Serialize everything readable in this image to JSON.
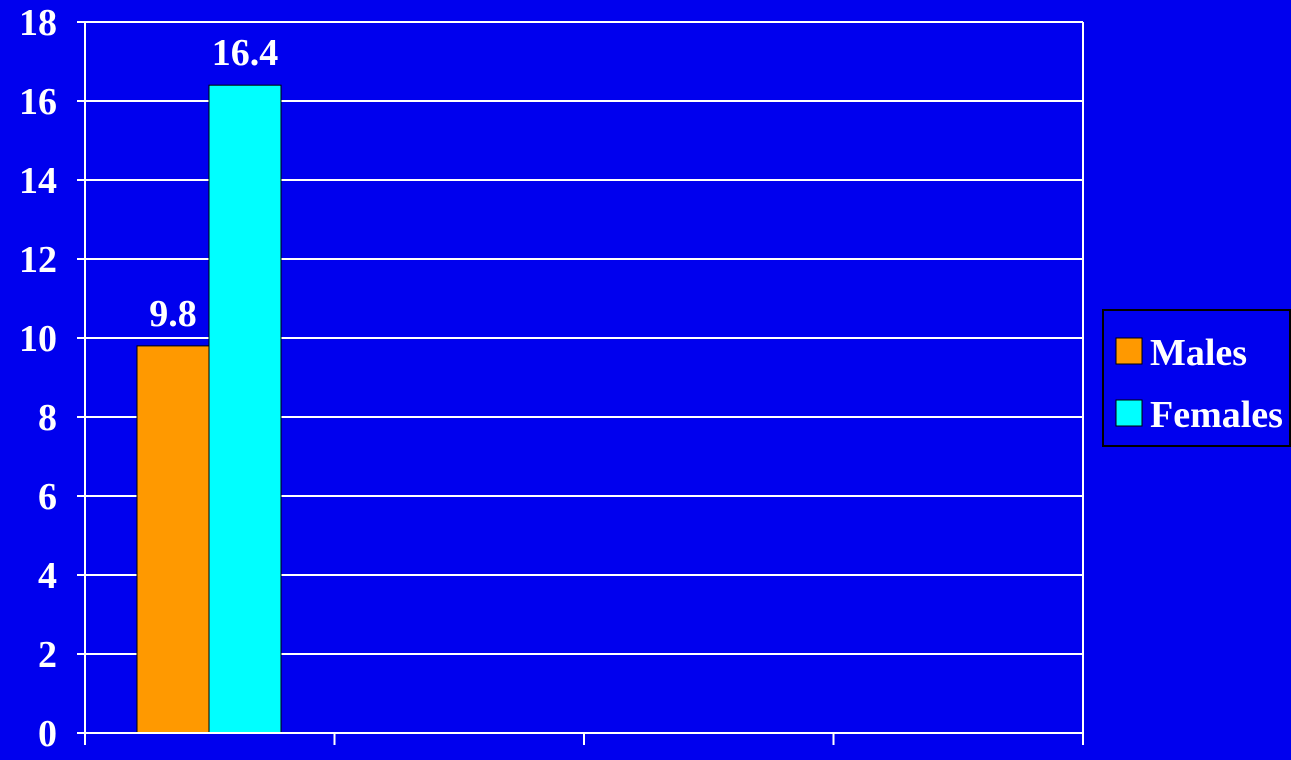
{
  "colors": {
    "background": "#0000EE",
    "grid": "#FFFFFF",
    "axis": "#FFFFFF",
    "text": "#FFFFFF"
  },
  "chart_data": {
    "type": "bar",
    "categories": [
      "",
      "",
      "",
      ""
    ],
    "series": [
      {
        "name": "Males",
        "values": [
          9.8,
          null,
          null,
          null
        ],
        "color": "#FF9900"
      },
      {
        "name": "Females",
        "values": [
          16.4,
          null,
          null,
          null
        ],
        "color": "#00FFFF"
      }
    ],
    "data_labels": [
      "9.8",
      "16.4"
    ],
    "ylim": [
      0,
      18
    ],
    "yticks": [
      0,
      2,
      4,
      6,
      8,
      10,
      12,
      14,
      16,
      18
    ],
    "ytick_labels": [
      "0",
      "2",
      "4",
      "6",
      "8",
      "10",
      "12",
      "14",
      "16",
      "18"
    ],
    "grid": true,
    "legend": {
      "position": "right",
      "entries": [
        "Males",
        "Females"
      ]
    }
  }
}
